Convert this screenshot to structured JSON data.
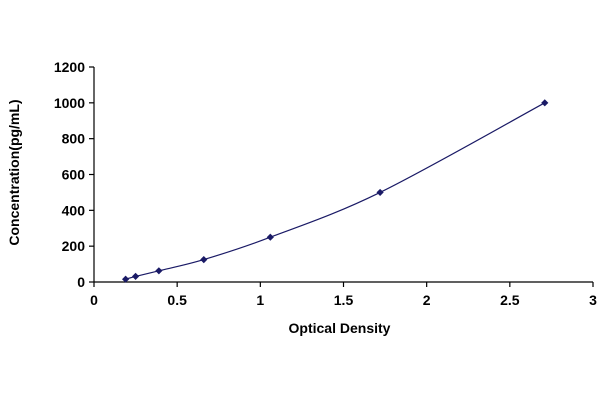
{
  "chart_data": {
    "type": "scatter",
    "title": "",
    "xlabel": "Optical Density",
    "ylabel": "Concentration(pg/mL)",
    "xlim": [
      0,
      3
    ],
    "ylim": [
      0,
      1200
    ],
    "x_ticks": [
      0,
      0.5,
      1,
      1.5,
      2,
      2.5,
      3
    ],
    "x_tick_labels": [
      "0",
      "0.5",
      "1",
      "1.5",
      "2",
      "2.5",
      "3"
    ],
    "y_ticks": [
      0,
      200,
      400,
      600,
      800,
      1000,
      1200
    ],
    "y_tick_labels": [
      "0",
      "200",
      "400",
      "600",
      "800",
      "1000",
      "1200"
    ],
    "grid": false,
    "legend": "none",
    "series": [
      {
        "x": [
          0.19,
          0.25,
          0.39,
          0.66,
          1.06,
          1.72,
          2.71
        ],
        "y": [
          15.6,
          31.2,
          62.5,
          125,
          250,
          500,
          1000
        ],
        "marker": "diamond",
        "color": "#1a1a66",
        "fit_line": true
      }
    ]
  }
}
